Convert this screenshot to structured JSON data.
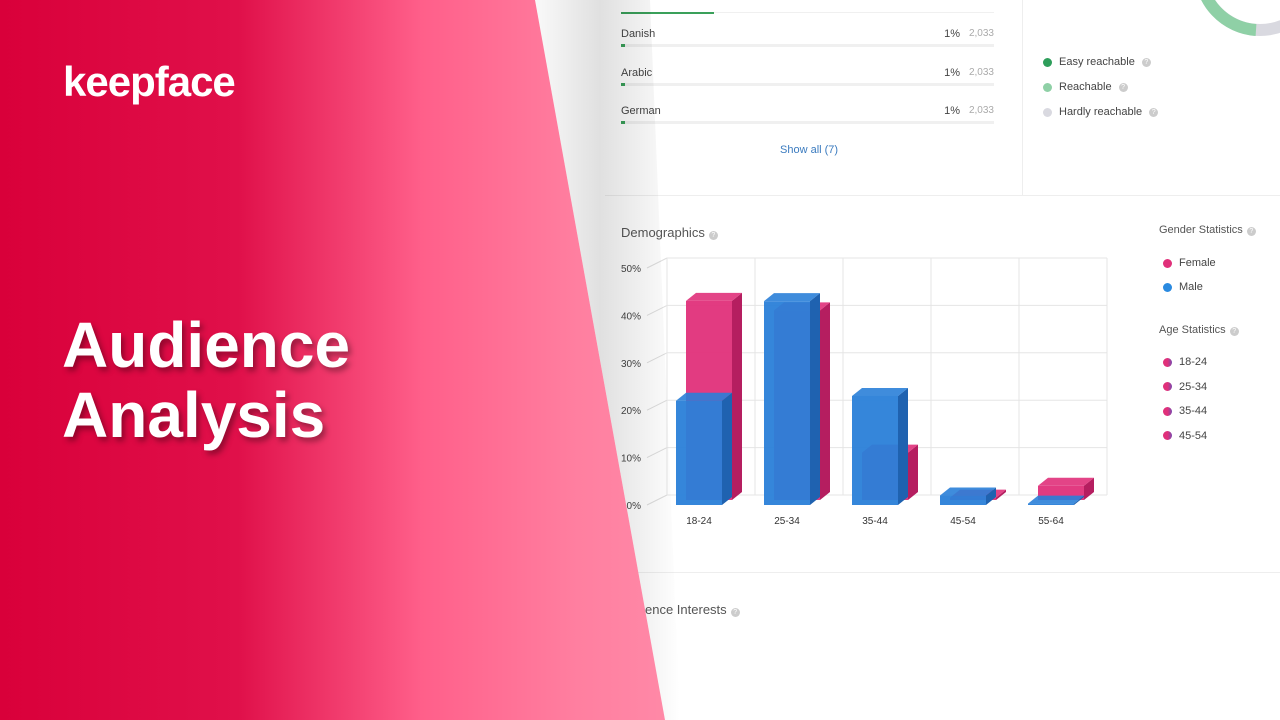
{
  "brand": {
    "logo": "keepface",
    "headline_line1": "Audience",
    "headline_line2": "Analysis"
  },
  "languages": {
    "items": [
      {
        "name": "Danish",
        "percent": "1%",
        "count": "2,033",
        "fill": 1
      },
      {
        "name": "Arabic",
        "percent": "1%",
        "count": "2,033",
        "fill": 1
      },
      {
        "name": "German",
        "percent": "1%",
        "count": "2,033",
        "fill": 1
      }
    ],
    "top_bar_fill_partial": 25,
    "show_all": "Show all (7)"
  },
  "reachability": {
    "legend": [
      {
        "label": "Easy reachable",
        "color": "#2e9e5b"
      },
      {
        "label": "Reachable",
        "color": "#8fd0a6"
      },
      {
        "label": "Hardly reachable",
        "color": "#d9d9e0"
      }
    ]
  },
  "demographics": {
    "title": "Demographics",
    "gender_title": "Gender Statistics",
    "gender": [
      {
        "label": "Female",
        "color": "#e0307a"
      },
      {
        "label": "Male",
        "color": "#2a8ae0"
      }
    ],
    "age_title": "Age Statistics",
    "ages": [
      {
        "label": "18-24"
      },
      {
        "label": "25-34"
      },
      {
        "label": "35-44"
      },
      {
        "label": "45-54"
      }
    ]
  },
  "interests": {
    "title": "ence Interests"
  },
  "chart_data": {
    "type": "bar",
    "categories": [
      "18-24",
      "25-34",
      "35-44",
      "45-54",
      "55-64"
    ],
    "series": [
      {
        "name": "Female",
        "color": "#e0307a",
        "values": [
          42,
          40,
          10,
          0.5,
          3
        ]
      },
      {
        "name": "Male",
        "color": "#2a7fd8",
        "values": [
          22,
          43,
          23,
          2,
          0.3
        ]
      }
    ],
    "yticks": [
      "0%",
      "10%",
      "20%",
      "30%",
      "40%",
      "50%"
    ],
    "ylim": [
      0,
      50
    ],
    "grid": true
  }
}
